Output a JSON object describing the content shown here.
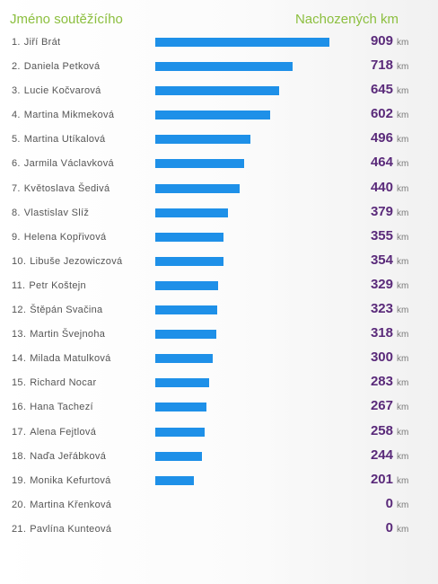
{
  "header": {
    "name_label": "Jméno soutěžícího",
    "km_label": "Nachozených km"
  },
  "unit_label": "km",
  "accent_color": "#1e90e8",
  "value_color": "#5a2a7a",
  "header_color": "#8cbf3f",
  "max_km": 909,
  "rows": [
    {
      "rank": "1.",
      "name": "Jiří Brát",
      "km": 909
    },
    {
      "rank": "2.",
      "name": "Daniela Petková",
      "km": 718
    },
    {
      "rank": "3.",
      "name": "Lucie Kočvarová",
      "km": 645
    },
    {
      "rank": "4.",
      "name": "Martina Mikmeková",
      "km": 602
    },
    {
      "rank": "5.",
      "name": "Martina Utíkalová",
      "km": 496
    },
    {
      "rank": "6.",
      "name": "Jarmila Václavková",
      "km": 464
    },
    {
      "rank": "7.",
      "name": "Květoslava Šedivá",
      "km": 440
    },
    {
      "rank": "8.",
      "name": "Vlastislav Slíž",
      "km": 379
    },
    {
      "rank": "9.",
      "name": "Helena Kopřivová",
      "km": 355
    },
    {
      "rank": "10.",
      "name": "Libuše Jezowiczová",
      "km": 354
    },
    {
      "rank": "11.",
      "name": "Petr Koštejn",
      "km": 329
    },
    {
      "rank": "12.",
      "name": "Štěpán Svačina",
      "km": 323
    },
    {
      "rank": "13.",
      "name": "Martin Švejnoha",
      "km": 318
    },
    {
      "rank": "14.",
      "name": "Milada Matulková",
      "km": 300
    },
    {
      "rank": "15.",
      "name": "Richard Nocar",
      "km": 283
    },
    {
      "rank": "16.",
      "name": "Hana Tachezí",
      "km": 267
    },
    {
      "rank": "17.",
      "name": "Alena Fejtlová",
      "km": 258
    },
    {
      "rank": "18.",
      "name": "Naďa Jeřábková",
      "km": 244
    },
    {
      "rank": "19.",
      "name": "Monika Kefurtová",
      "km": 201
    },
    {
      "rank": "20.",
      "name": "Martina Křenková",
      "km": 0
    },
    {
      "rank": "21.",
      "name": "Pavlína Kunteová",
      "km": 0
    }
  ]
}
